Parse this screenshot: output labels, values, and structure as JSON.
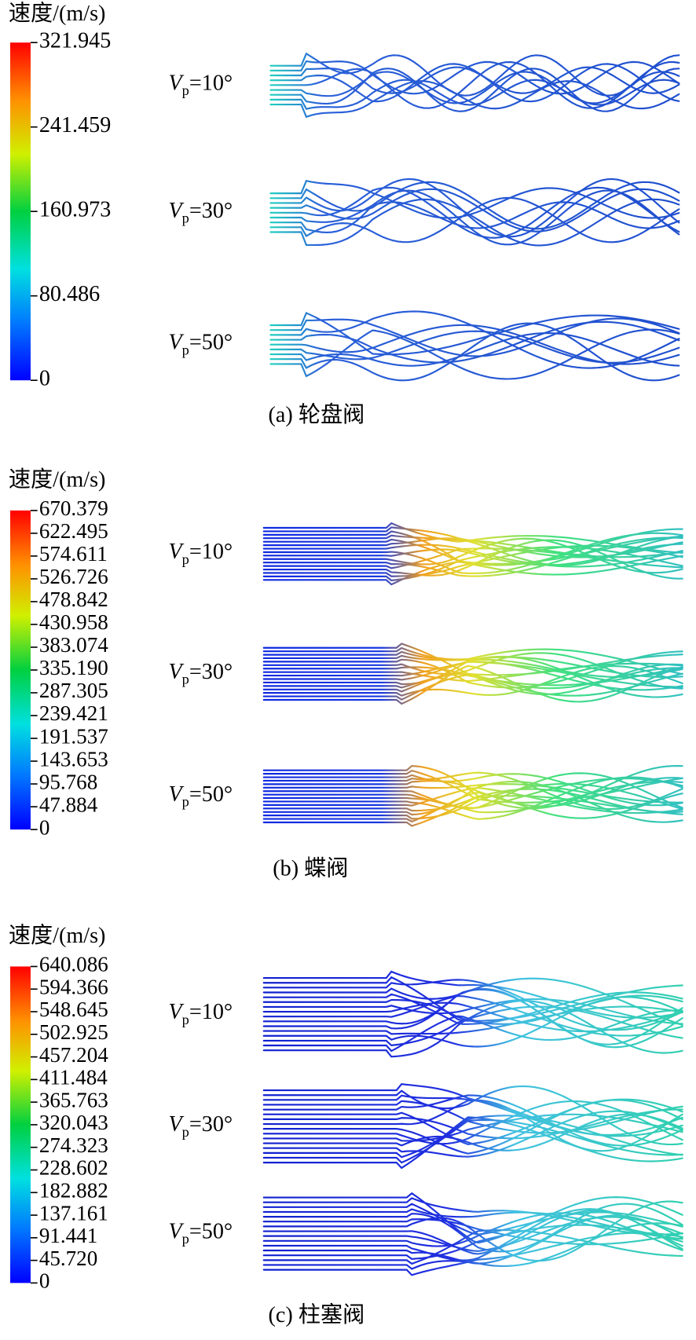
{
  "panels": [
    {
      "legend_title": "速度/(m/s)",
      "colorbar_ticks": [
        321.945,
        241.459,
        160.973,
        80.486,
        0
      ],
      "rows": [
        {
          "variable": "V",
          "subscript": "p",
          "angle": "=10°"
        },
        {
          "variable": "V",
          "subscript": "p",
          "angle": "=30°"
        },
        {
          "variable": "V",
          "subscript": "p",
          "angle": "=50°"
        }
      ],
      "caption": "(a) 轮盘阀"
    },
    {
      "legend_title": "速度/(m/s)",
      "colorbar_ticks": [
        670.379,
        622.495,
        574.611,
        526.726,
        478.842,
        430.958,
        383.074,
        {
          "value": 335.19,
          "label": "335.190"
        },
        287.305,
        239.421,
        191.537,
        143.653,
        95.768,
        47.884,
        0
      ],
      "rows": [
        {
          "variable": "V",
          "subscript": "p",
          "angle": "=10°"
        },
        {
          "variable": "V",
          "subscript": "p",
          "angle": "=30°"
        },
        {
          "variable": "V",
          "subscript": "p",
          "angle": "=50°"
        }
      ],
      "caption": "(b) 蝶阀"
    },
    {
      "legend_title": "速度/(m/s)",
      "colorbar_ticks": [
        640.086,
        594.366,
        548.645,
        502.925,
        457.204,
        411.484,
        365.763,
        320.043,
        274.323,
        228.602,
        182.882,
        137.161,
        91.441,
        {
          "value": 45.72,
          "label": "45.720"
        },
        0
      ],
      "rows": [
        {
          "variable": "V",
          "subscript": "p",
          "angle": "=10°"
        },
        {
          "variable": "V",
          "subscript": "p",
          "angle": "=30°"
        },
        {
          "variable": "V",
          "subscript": "p",
          "angle": "=50°"
        }
      ],
      "caption": "(c) 柱塞阀"
    }
  ]
}
